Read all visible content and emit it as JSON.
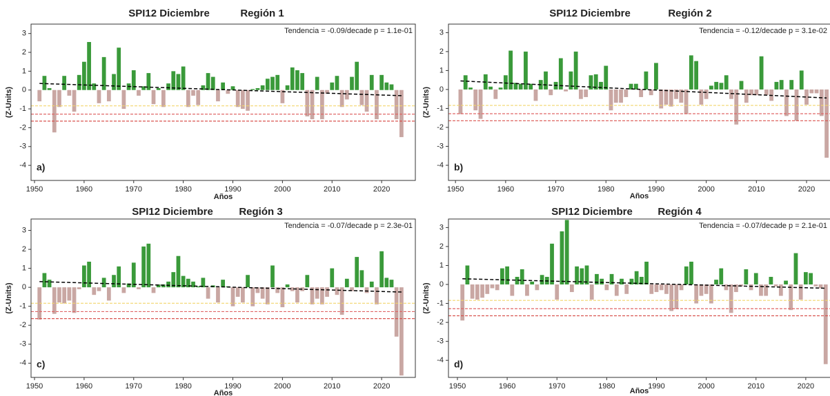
{
  "chart_data": [
    {
      "type": "bar",
      "title": "SPI12 Diciembre",
      "subtitle": "Región 1",
      "annotation": "Tendencia = -0.09/decade   p = 1.1e-01",
      "panel_label": "a)",
      "xlabel": "Años",
      "ylabel": "(Z-Units)",
      "color_positive": "#3a9a3a",
      "color_negative": "#c9a7a3",
      "x": [
        1951,
        1952,
        1953,
        1954,
        1955,
        1956,
        1957,
        1958,
        1959,
        1960,
        1961,
        1962,
        1963,
        1964,
        1965,
        1966,
        1967,
        1968,
        1969,
        1970,
        1971,
        1972,
        1973,
        1974,
        1975,
        1976,
        1977,
        1978,
        1979,
        1980,
        1981,
        1982,
        1983,
        1984,
        1985,
        1986,
        1987,
        1988,
        1989,
        1990,
        1991,
        1992,
        1993,
        1994,
        1995,
        1996,
        1997,
        1998,
        1999,
        2000,
        2001,
        2002,
        2003,
        2004,
        2005,
        2006,
        2007,
        2008,
        2009,
        2010,
        2011,
        2012,
        2013,
        2014,
        2015,
        2016,
        2017,
        2018,
        2019,
        2020,
        2021,
        2022,
        2023,
        2024
      ],
      "values": [
        -0.6,
        0.75,
        0.1,
        -2.25,
        -0.9,
        0.75,
        -0.3,
        -1.15,
        0.8,
        1.5,
        2.55,
        0.35,
        -0.7,
        1.75,
        -0.6,
        0.85,
        2.25,
        -1.0,
        0.35,
        1.05,
        -0.3,
        0.2,
        0.9,
        -0.75,
        0.1,
        -0.9,
        0.35,
        1.0,
        0.85,
        1.25,
        -0.9,
        -0.3,
        -0.8,
        0.25,
        0.9,
        0.7,
        -0.6,
        0.4,
        -0.2,
        0.2,
        -0.9,
        -1.0,
        -1.1,
        0.05,
        0.1,
        0.25,
        0.6,
        0.7,
        0.8,
        -0.7,
        0.25,
        1.2,
        1.05,
        0.9,
        -1.4,
        -1.55,
        0.7,
        -1.55,
        -0.2,
        0.4,
        0.75,
        -0.9,
        -0.5,
        0.7,
        1.5,
        -0.8,
        -1.15,
        0.8,
        -1.55,
        0.8,
        0.4,
        0.3,
        -1.55,
        -2.5
      ],
      "trend": {
        "x": [
          1951,
          2024
        ],
        "values": [
          0.35,
          -0.3
        ],
        "color": "#000000"
      },
      "reference_lines": [
        {
          "value": -0.84,
          "color": "#f2d56b"
        },
        {
          "value": -1.28,
          "color": "#e06666"
        },
        {
          "value": -1.65,
          "color": "#d9534f"
        }
      ],
      "xlim": [
        1949.3,
        2026.8
      ],
      "ylim": [
        -4.8,
        3.5
      ],
      "xticks": [
        1950,
        1960,
        1970,
        1980,
        1990,
        2000,
        2010,
        2020
      ],
      "yticks": [
        -4,
        -3,
        -2,
        -1,
        0,
        1,
        2,
        3
      ]
    },
    {
      "type": "bar",
      "title": "SPI12 Diciembre",
      "subtitle": "Región 2",
      "annotation": "Tendencia = -0.12/decade   p = 3.1e-02",
      "panel_label": "b)",
      "xlabel": "Años",
      "ylabel": "(Z-Units)",
      "color_positive": "#3a9a3a",
      "color_negative": "#c9a7a3",
      "x": [
        1951,
        1952,
        1953,
        1954,
        1955,
        1956,
        1957,
        1958,
        1959,
        1960,
        1961,
        1962,
        1963,
        1964,
        1965,
        1966,
        1967,
        1968,
        1969,
        1970,
        1971,
        1972,
        1973,
        1974,
        1975,
        1976,
        1977,
        1978,
        1979,
        1980,
        1981,
        1982,
        1983,
        1984,
        1985,
        1986,
        1987,
        1988,
        1989,
        1990,
        1991,
        1992,
        1993,
        1994,
        1995,
        1996,
        1997,
        1998,
        1999,
        2000,
        2001,
        2002,
        2003,
        2004,
        2005,
        2006,
        2007,
        2008,
        2009,
        2010,
        2011,
        2012,
        2013,
        2014,
        2015,
        2016,
        2017,
        2018,
        2019,
        2020,
        2021,
        2022,
        2023,
        2024
      ],
      "values": [
        -1.3,
        0.75,
        0.1,
        -1.1,
        -1.55,
        0.8,
        0.15,
        -0.5,
        0.1,
        0.75,
        2.05,
        0.35,
        0.3,
        2.0,
        0.3,
        -0.6,
        0.5,
        0.95,
        -0.3,
        0.4,
        1.65,
        -0.1,
        0.95,
        2.0,
        -0.5,
        -0.4,
        0.75,
        0.8,
        0.4,
        1.25,
        -1.1,
        -0.7,
        -0.7,
        -0.4,
        0.3,
        0.3,
        -0.4,
        0.95,
        -0.3,
        1.4,
        -1.0,
        -0.8,
        -0.9,
        -0.5,
        -0.7,
        -1.3,
        1.8,
        1.5,
        -0.8,
        -0.5,
        0.2,
        0.4,
        0.35,
        0.75,
        -0.5,
        -1.85,
        0.45,
        -0.7,
        -0.3,
        -0.3,
        1.75,
        -0.3,
        -0.6,
        0.4,
        0.5,
        -1.4,
        0.5,
        -1.65,
        1.0,
        -0.8,
        -0.2,
        -0.2,
        -1.4,
        -3.6
      ],
      "trend": {
        "x": [
          1951,
          2024
        ],
        "values": [
          0.45,
          -0.45
        ],
        "color": "#000000"
      },
      "reference_lines": [
        {
          "value": -0.84,
          "color": "#f2d56b"
        },
        {
          "value": -1.28,
          "color": "#e06666"
        },
        {
          "value": -1.65,
          "color": "#d9534f"
        }
      ],
      "xlim": [
        1948.6,
        2025.5
      ],
      "ylim": [
        -4.8,
        3.45
      ],
      "xticks": [
        1950,
        1960,
        1970,
        1980,
        1990,
        2000,
        2010,
        2020
      ],
      "yticks": [
        -4,
        -3,
        -2,
        -1,
        0,
        1,
        2,
        3
      ]
    },
    {
      "type": "bar",
      "title": "SPI12 Diciembre",
      "subtitle": "Región 3",
      "annotation": "Tendencia = -0.07/decade   p = 2.3e-01",
      "panel_label": "c)",
      "xlabel": "Años",
      "ylabel": "(Z-Units)",
      "color_positive": "#3a9a3a",
      "color_negative": "#c9a7a3",
      "x": [
        1951,
        1952,
        1953,
        1954,
        1955,
        1956,
        1957,
        1958,
        1959,
        1960,
        1961,
        1962,
        1963,
        1964,
        1965,
        1966,
        1967,
        1968,
        1969,
        1970,
        1971,
        1972,
        1973,
        1974,
        1975,
        1976,
        1977,
        1978,
        1979,
        1980,
        1981,
        1982,
        1983,
        1984,
        1985,
        1986,
        1987,
        1988,
        1989,
        1990,
        1991,
        1992,
        1993,
        1994,
        1995,
        1996,
        1997,
        1998,
        1999,
        2000,
        2001,
        2002,
        2003,
        2004,
        2005,
        2006,
        2007,
        2008,
        2009,
        2010,
        2011,
        2012,
        2013,
        2014,
        2015,
        2016,
        2017,
        2018,
        2019,
        2020,
        2021,
        2022,
        2023,
        2024
      ],
      "values": [
        -1.7,
        0.75,
        0.4,
        -1.4,
        -0.8,
        -0.85,
        -0.7,
        -1.35,
        -0.1,
        1.15,
        1.35,
        -0.4,
        -0.2,
        0.5,
        -0.7,
        0.65,
        1.1,
        -0.3,
        0.2,
        1.3,
        -0.1,
        2.15,
        2.3,
        -0.3,
        0.15,
        0.15,
        0.3,
        0.8,
        1.65,
        0.6,
        0.45,
        0.3,
        0.05,
        0.5,
        -0.6,
        0.1,
        -0.8,
        0.4,
        0.05,
        -1.0,
        -0.5,
        -0.8,
        0.65,
        -1.0,
        -0.3,
        -0.6,
        -0.9,
        1.15,
        -0.3,
        -1.05,
        0.15,
        -0.2,
        -0.8,
        -0.2,
        0.65,
        -0.9,
        -0.6,
        -0.9,
        -0.5,
        1.0,
        -0.4,
        -1.45,
        0.45,
        -0.2,
        1.6,
        0.9,
        -0.3,
        0.3,
        -0.9,
        1.9,
        0.5,
        0.4,
        -2.6,
        -4.65
      ],
      "trend": {
        "x": [
          1951,
          2024
        ],
        "values": [
          0.3,
          -0.25
        ],
        "color": "#000000"
      },
      "reference_lines": [
        {
          "value": -0.84,
          "color": "#f2d56b"
        },
        {
          "value": -1.28,
          "color": "#e06666"
        },
        {
          "value": -1.65,
          "color": "#d9534f"
        }
      ],
      "xlim": [
        1949.3,
        2026.8
      ],
      "ylim": [
        -4.75,
        3.6
      ],
      "xticks": [
        1950,
        1960,
        1970,
        1980,
        1990,
        2000,
        2010,
        2020
      ],
      "yticks": [
        -4,
        -3,
        -2,
        -1,
        0,
        1,
        2,
        3
      ]
    },
    {
      "type": "bar",
      "title": "SPI12 Diciembre",
      "subtitle": "Región 4",
      "annotation": "Tendencia = -0.07/decade   p = 2.1e-01",
      "panel_label": "d)",
      "xlabel": "Años",
      "ylabel": "(Z-Units)",
      "color_positive": "#3a9a3a",
      "color_negative": "#c9a7a3",
      "x": [
        1951,
        1952,
        1953,
        1954,
        1955,
        1956,
        1957,
        1958,
        1959,
        1960,
        1961,
        1962,
        1963,
        1964,
        1965,
        1966,
        1967,
        1968,
        1969,
        1970,
        1971,
        1972,
        1973,
        1974,
        1975,
        1976,
        1977,
        1978,
        1979,
        1980,
        1981,
        1982,
        1983,
        1984,
        1985,
        1986,
        1987,
        1988,
        1989,
        1990,
        1991,
        1992,
        1993,
        1994,
        1995,
        1996,
        1997,
        1998,
        1999,
        2000,
        2001,
        2002,
        2003,
        2004,
        2005,
        2006,
        2007,
        2008,
        2009,
        2010,
        2011,
        2012,
        2013,
        2014,
        2015,
        2016,
        2017,
        2018,
        2019,
        2020,
        2021,
        2022,
        2023,
        2024
      ],
      "values": [
        -1.9,
        1.0,
        -0.75,
        -0.8,
        -0.7,
        -0.5,
        -0.2,
        -0.3,
        0.85,
        0.95,
        -0.6,
        0.4,
        0.8,
        -0.6,
        0.15,
        -0.3,
        0.5,
        0.4,
        2.15,
        -0.8,
        2.8,
        3.4,
        -0.4,
        0.95,
        0.85,
        1.0,
        -0.8,
        0.55,
        0.3,
        -0.3,
        0.55,
        -0.6,
        0.3,
        -0.5,
        0.3,
        0.7,
        0.4,
        1.2,
        -0.5,
        -0.4,
        -0.3,
        -0.5,
        -1.4,
        -1.3,
        -0.3,
        0.95,
        1.2,
        -1.0,
        -0.6,
        -0.5,
        -1.0,
        0.25,
        0.85,
        -0.3,
        -1.5,
        -0.4,
        -0.1,
        0.8,
        -0.3,
        0.6,
        -0.6,
        -0.6,
        0.4,
        -0.1,
        -0.6,
        0.2,
        -1.35,
        1.65,
        -0.8,
        0.65,
        0.6,
        -0.1,
        -0.2,
        -4.2
      ],
      "trend": {
        "x": [
          1951,
          2024
        ],
        "values": [
          0.3,
          -0.2
        ],
        "color": "#000000"
      },
      "reference_lines": [
        {
          "value": -0.84,
          "color": "#f2d56b"
        },
        {
          "value": -1.28,
          "color": "#e06666"
        },
        {
          "value": -1.65,
          "color": "#d9534f"
        }
      ],
      "xlim": [
        1948.2,
        2025.7
      ],
      "ylim": [
        -4.9,
        3.45
      ],
      "xticks": [
        1950,
        1960,
        1970,
        1980,
        1990,
        2000,
        2010,
        2020
      ],
      "yticks": [
        -4,
        -3,
        -2,
        -1,
        0,
        1,
        2,
        3
      ]
    }
  ]
}
